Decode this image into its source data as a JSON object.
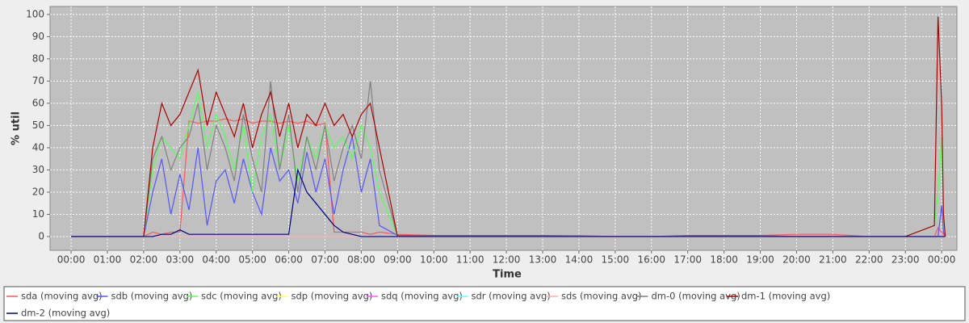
{
  "chart_data": {
    "type": "line",
    "x_label": "Time",
    "y_label": "% util",
    "grid": true,
    "x": [
      0,
      1,
      2,
      2.25,
      2.5,
      2.75,
      3,
      3.25,
      3.5,
      3.75,
      4,
      4.25,
      4.5,
      4.75,
      5,
      5.25,
      5.5,
      5.75,
      6,
      6.25,
      6.5,
      6.75,
      7,
      7.25,
      7.5,
      7.75,
      8,
      8.25,
      8.5,
      9,
      10,
      11,
      12,
      13,
      14,
      15,
      16,
      17,
      18,
      19,
      20,
      21,
      22,
      23,
      23.8,
      23.9,
      24,
      24.05,
      24.1
    ],
    "xlim": [
      -0.58,
      24.42
    ],
    "xticks": [
      {
        "value": 0,
        "label": "00:00"
      },
      {
        "value": 1,
        "label": "01:00"
      },
      {
        "value": 2,
        "label": "02:00"
      },
      {
        "value": 3,
        "label": "03:00"
      },
      {
        "value": 4,
        "label": "04:00"
      },
      {
        "value": 5,
        "label": "05:00"
      },
      {
        "value": 6,
        "label": "06:00"
      },
      {
        "value": 7,
        "label": "07:00"
      },
      {
        "value": 8,
        "label": "08:00"
      },
      {
        "value": 9,
        "label": "09:00"
      },
      {
        "value": 10,
        "label": "10:00"
      },
      {
        "value": 11,
        "label": "11:00"
      },
      {
        "value": 12,
        "label": "12:00"
      },
      {
        "value": 13,
        "label": "13:00"
      },
      {
        "value": 14,
        "label": "14:00"
      },
      {
        "value": 15,
        "label": "15:00"
      },
      {
        "value": 16,
        "label": "16:00"
      },
      {
        "value": 17,
        "label": "17:00"
      },
      {
        "value": 18,
        "label": "18:00"
      },
      {
        "value": 19,
        "label": "19:00"
      },
      {
        "value": 20,
        "label": "20:00"
      },
      {
        "value": 21,
        "label": "21:00"
      },
      {
        "value": 22,
        "label": "22:00"
      },
      {
        "value": 23,
        "label": "23:00"
      },
      {
        "value": 24,
        "label": "00:00"
      }
    ],
    "ylim": [
      -6.2,
      103.6
    ],
    "yticks": [
      0,
      10,
      20,
      30,
      40,
      50,
      60,
      70,
      80,
      90,
      100
    ],
    "series": [
      {
        "name": "sda (moving avg)",
        "color": "#ff5555",
        "values": [
          0,
          0,
          0,
          2,
          1,
          2,
          2,
          52,
          51,
          52,
          52,
          53,
          52,
          53,
          51,
          52,
          52,
          51,
          52,
          51,
          52,
          50,
          51,
          2,
          2,
          2,
          2,
          1,
          2,
          1,
          0.5,
          0.5,
          0.5,
          0.5,
          0.5,
          0,
          0,
          0,
          0.5,
          0.5,
          1,
          1,
          0,
          0,
          0,
          4,
          2,
          1,
          0
        ]
      },
      {
        "name": "sdb (moving avg)",
        "color": "#5555ff",
        "values": [
          0,
          0,
          0,
          20,
          35,
          10,
          28,
          12,
          40,
          5,
          25,
          30,
          15,
          35,
          20,
          10,
          40,
          25,
          30,
          15,
          38,
          20,
          35,
          10,
          30,
          45,
          20,
          35,
          5,
          0.5,
          0.5,
          0.5,
          0.5,
          0.5,
          0,
          0,
          0,
          0.5,
          0.5,
          0.5,
          0,
          0,
          0,
          0,
          0,
          0,
          14,
          2,
          0
        ]
      },
      {
        "name": "sdc (moving avg)",
        "color": "#55ff55",
        "values": [
          0,
          0,
          0,
          30,
          45,
          40,
          35,
          50,
          65,
          40,
          55,
          45,
          30,
          50,
          20,
          45,
          55,
          30,
          50,
          25,
          45,
          35,
          50,
          40,
          45,
          35,
          50,
          40,
          20,
          0,
          0,
          0,
          0,
          0,
          0,
          0,
          0,
          0,
          0,
          0,
          0,
          0,
          0,
          0,
          5,
          20,
          45,
          10,
          0
        ]
      },
      {
        "name": "sdp (moving avg)",
        "color": "#ffff55",
        "values": [
          0,
          0,
          0,
          0,
          0,
          0,
          0,
          0,
          0,
          0,
          0,
          0,
          0,
          0,
          0,
          0,
          0,
          0,
          0,
          0,
          0,
          0,
          0,
          0,
          0,
          0,
          0,
          0,
          0,
          0,
          0,
          0,
          0,
          0,
          0,
          0,
          0,
          0,
          0,
          0,
          0,
          0,
          0,
          0,
          0,
          0,
          0,
          0,
          0
        ]
      },
      {
        "name": "sdq (moving avg)",
        "color": "#ff55ff",
        "values": [
          0,
          0,
          0,
          0,
          0,
          0,
          0,
          0,
          0,
          0,
          0,
          0,
          0,
          0,
          0,
          0,
          0,
          0,
          0,
          0,
          0,
          0,
          0,
          0,
          0,
          0,
          0,
          0,
          0,
          0,
          0,
          0,
          0,
          0,
          0,
          0,
          0,
          0,
          0,
          0,
          0,
          0,
          0,
          0,
          0,
          0,
          0,
          0,
          0
        ]
      },
      {
        "name": "sdr (moving avg)",
        "color": "#55ffff",
        "values": [
          0,
          0,
          0,
          0,
          0,
          0,
          0,
          0,
          0,
          0,
          0,
          0,
          0,
          0,
          0,
          0,
          0,
          0,
          0,
          0,
          0,
          0,
          0,
          0,
          0,
          0,
          0,
          0,
          0,
          0,
          0,
          0,
          0,
          0,
          0,
          0,
          0,
          0,
          0,
          0,
          0,
          0,
          0,
          0,
          0,
          0,
          0,
          0,
          0
        ]
      },
      {
        "name": "sds (moving avg)",
        "color": "#ffafaf",
        "values": [
          0,
          0,
          0,
          0,
          0,
          0,
          0,
          0,
          0,
          0,
          0,
          0,
          0,
          0,
          0,
          0,
          0,
          0,
          0,
          0,
          0,
          0,
          0,
          0,
          0,
          0,
          0,
          0,
          0,
          0,
          0,
          0,
          0,
          0,
          0,
          0,
          0,
          0,
          0,
          0,
          0,
          0,
          0,
          0,
          0,
          0,
          0,
          0,
          0
        ]
      },
      {
        "name": "dm-0 (moving avg)",
        "color": "#808080",
        "values": [
          0,
          0,
          0,
          35,
          45,
          30,
          40,
          45,
          60,
          30,
          50,
          40,
          25,
          55,
          35,
          20,
          70,
          30,
          55,
          20,
          45,
          30,
          50,
          25,
          40,
          50,
          35,
          70,
          30,
          0,
          0,
          0,
          0,
          0,
          0,
          0,
          0,
          0,
          0,
          0,
          0,
          0,
          0,
          0,
          0,
          0,
          0,
          0,
          0
        ]
      },
      {
        "name": "dm-1 (moving avg)",
        "color": "#aa0000",
        "values": [
          0,
          0,
          0,
          40,
          60,
          50,
          55,
          65,
          75,
          50,
          65,
          55,
          45,
          60,
          40,
          55,
          65,
          45,
          60,
          40,
          55,
          50,
          60,
          50,
          55,
          45,
          55,
          60,
          40,
          0,
          0,
          0,
          0,
          0,
          0,
          0,
          0,
          0,
          0,
          0,
          0,
          0,
          0,
          0,
          5,
          99,
          60,
          10,
          0
        ]
      },
      {
        "name": "dm-2 (moving avg)",
        "color": "#000080",
        "values": [
          0,
          0,
          0,
          0,
          1,
          1,
          3,
          1,
          1,
          1,
          1,
          1,
          1,
          1,
          1,
          1,
          1,
          1,
          1,
          30,
          20,
          15,
          10,
          5,
          2,
          1,
          0,
          0,
          0,
          0,
          0,
          0,
          0,
          0,
          0,
          0,
          0,
          0,
          0,
          0,
          0,
          0,
          0,
          0,
          0,
          0,
          0,
          0,
          0
        ]
      }
    ]
  }
}
